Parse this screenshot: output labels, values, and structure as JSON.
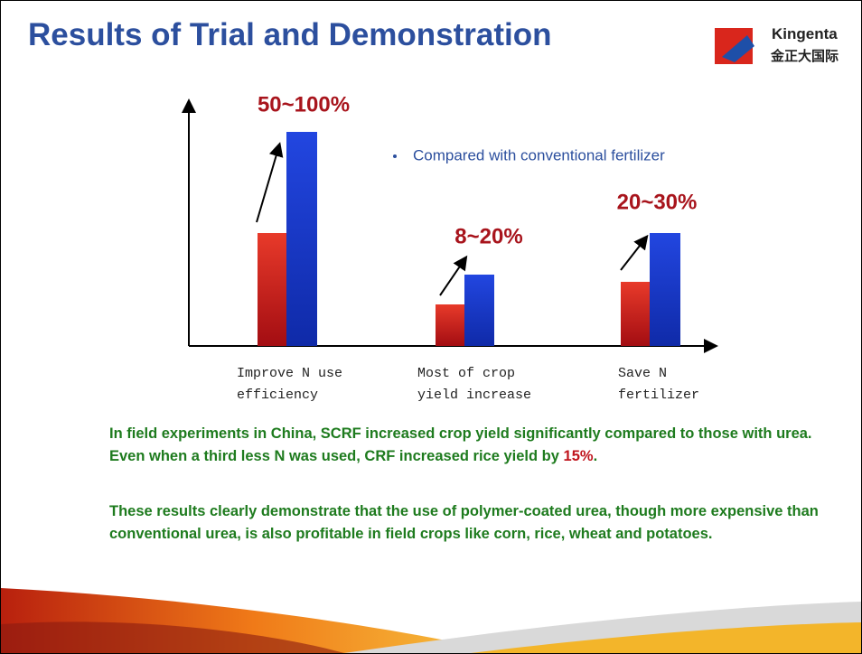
{
  "title": "Results of Trial and Demonstration",
  "logo": {
    "brand": "Kingenta",
    "subtitle": "金正大国际"
  },
  "chart": {
    "note": "Compared with conventional fertilizer",
    "groups": [
      {
        "label": [
          "Improve N use",
          "efficiency"
        ],
        "gain": "50~100%"
      },
      {
        "label": [
          "Most of crop",
          "yield increase"
        ],
        "gain": "8~20%"
      },
      {
        "label": [
          "Save N",
          "fertilizer"
        ],
        "gain": "20~30%"
      }
    ]
  },
  "paragraphs": [
    [
      "In field experiments in China, SCRF increased crop yield significantly compared to those with urea. Even when a third less N was used, CRF increased rice yield by ",
      "15%",
      "."
    ],
    [
      "These results clearly demonstrate that the use of polymer-coated urea, though more expensive than conventional urea, is also profitable in field crops like corn, rice, wheat and potatoes."
    ]
  ]
}
